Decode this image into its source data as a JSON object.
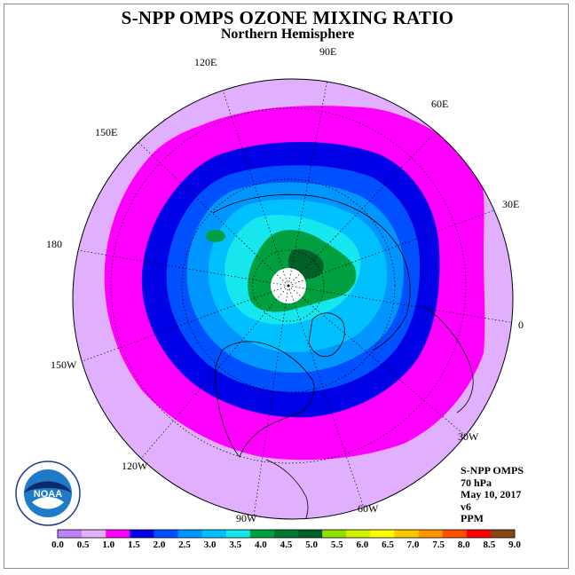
{
  "header": {
    "title": "S-NPP OMPS OZONE MIXING RATIO",
    "subtitle": "Northern Hemisphere"
  },
  "longitude_labels": [
    "120E",
    "90E",
    "60E",
    "150E",
    "30E",
    "180",
    "0",
    "150W",
    "30W",
    "120W",
    "60W",
    "90W"
  ],
  "info": {
    "instrument": "S-NPP OMPS",
    "level": "70 hPa",
    "date": "May 10, 2017",
    "version": "v6",
    "units": "PPM"
  },
  "logo": {
    "text": "NOAA",
    "ring_text": "NATIONAL OCEANIC AND ATMOSPHERIC ADMINISTRATION",
    "icon": "noaa-logo-icon"
  },
  "colorbar": {
    "tick_labels": [
      "0.0",
      "0.5",
      "1.0",
      "1.5",
      "2.0",
      "2.5",
      "3.0",
      "3.5",
      "4.0",
      "4.5",
      "5.0",
      "5.5",
      "6.0",
      "6.5",
      "7.0",
      "7.5",
      "8.0",
      "8.5",
      "9.0"
    ],
    "colors": [
      "#c080ff",
      "#e4b0ff",
      "#ff00ff",
      "#0000e6",
      "#0050ff",
      "#0095ff",
      "#00c0ff",
      "#16e6ee",
      "#00a040",
      "#007830",
      "#006028",
      "#90e000",
      "#d0f000",
      "#ffff00",
      "#ffc800",
      "#ff9600",
      "#ff5000",
      "#ff0000",
      "#8b4513"
    ]
  },
  "map_colors": {
    "outer": "#e0b0ff",
    "magenta": "#ff00ff",
    "dark_blue": "#0000e6",
    "blue": "#0050ff",
    "mid_blue": "#0095ff",
    "light_blue": "#00c0ff",
    "cyan": "#16e6ee",
    "green": "#00a040",
    "dark_green": "#006028",
    "pole_hole": "#ffffff"
  }
}
